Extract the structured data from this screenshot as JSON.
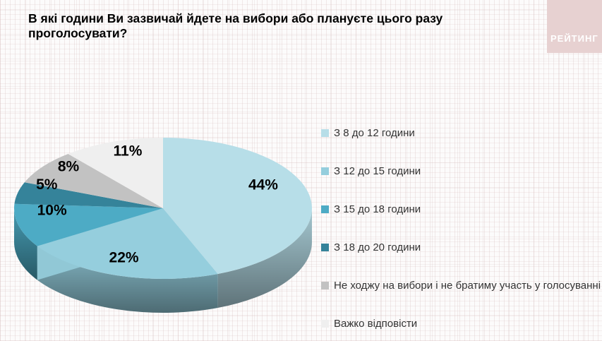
{
  "header": {
    "logo_text": "РЕЙТИНГ"
  },
  "chart_data": {
    "type": "pie",
    "style": "3d",
    "title": "В які години Ви зазвичай йдете на вибори або плануєте цього разу проголосувати?",
    "unit": "%",
    "start_angle_deg": 0,
    "direction": "clockwise",
    "legend_position": "right",
    "slices": [
      {
        "label": "З 8 до 12 години",
        "value": 44,
        "display": "44%",
        "color": "#b7dee8"
      },
      {
        "label": "З 12 до 15 години",
        "value": 22,
        "display": "22%",
        "color": "#95cedd"
      },
      {
        "label": "З 15 до 18 години",
        "value": 10,
        "display": "10%",
        "color": "#4dabc5"
      },
      {
        "label": "З 18 до 20 години",
        "value": 5,
        "display": "5%",
        "color": "#35839a"
      },
      {
        "label": "Не ходжу на вибори і не братиму участь у голосуванні",
        "value": 8,
        "display": "8%",
        "color": "#c2c2c2"
      },
      {
        "label": "Важко відповісти",
        "value": 11,
        "display": "11%",
        "color": "#efefef"
      }
    ]
  },
  "colors": {
    "logo_bg": "#e7d1d1",
    "title_text": "#000000",
    "legend_text": "#333333",
    "value_label_text": "#000000"
  }
}
